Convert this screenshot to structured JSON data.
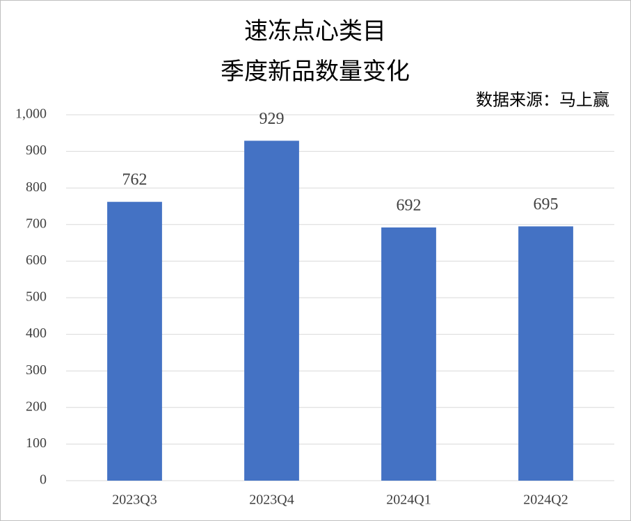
{
  "chart_data": {
    "type": "bar",
    "title": "速冻点心类目",
    "subtitle": "季度新品数量变化",
    "annotation": "数据来源：马上赢",
    "categories": [
      "2023Q3",
      "2023Q4",
      "2024Q1",
      "2024Q2"
    ],
    "values": [
      762,
      929,
      692,
      695
    ],
    "color": "#4472c4",
    "ylim": [
      0,
      1000
    ],
    "yticks": [
      0,
      100,
      200,
      300,
      400,
      500,
      600,
      700,
      800,
      900,
      {
        "value": 1000,
        "label": "1,000"
      }
    ],
    "grid": true
  }
}
